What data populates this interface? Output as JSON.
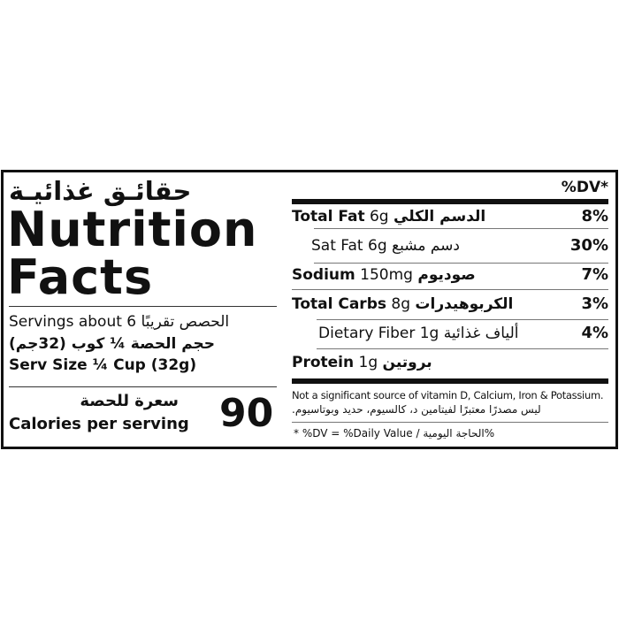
{
  "left": {
    "title_ar": "حقائـق غذائيـة",
    "title_line1": "Nutrition",
    "title_line2": "Facts",
    "servings_en": "Servings about 6",
    "servings_ar": "الحصص تقريبًا",
    "serv_size_ar": "حجم الحصة ¼ كوب (32جم)",
    "serv_size_en": "Serv Size ¼ Cup (32g)",
    "calories_ar": "سعرة للحصة",
    "calories_en": "Calories per serving",
    "calories_value": "90"
  },
  "right": {
    "dv_header": "%DV*",
    "rows": [
      {
        "name_en": "Total Fat",
        "amount": "6g",
        "name_ar": "الدسم الكلي",
        "dv": "8%",
        "bold": true,
        "indent": false
      },
      {
        "name_en": "Sat Fat",
        "amount": "6g",
        "name_ar": "دسم مشبع",
        "dv": "30%",
        "bold": false,
        "indent": true
      },
      {
        "name_en": "Sodium",
        "amount": "150mg",
        "name_ar": "صوديوم",
        "dv": "7%",
        "bold": true,
        "indent": false
      },
      {
        "name_en": "Total Carbs",
        "amount": "8g",
        "name_ar": "الكربوهيدرات",
        "dv": "3%",
        "bold": true,
        "indent": false
      },
      {
        "name_en": "Dietary Fiber",
        "amount": "1g",
        "name_ar": "ألياف غذائية",
        "dv": "4%",
        "bold": false,
        "indent": true
      },
      {
        "name_en": "Protein",
        "amount": "1g",
        "name_ar": "بروتين",
        "dv": "",
        "bold": true,
        "indent": false
      }
    ],
    "note_en": "Not a significant source of vitamin D, Calcium, Iron & Potassium.",
    "note_ar": "ليس مصدرًا معتبرًا لفيتامين د، كالسيوم، حديد وبوتاسيوم.",
    "footnote": "* %DV = %Daily Value / الحاجة اليومية%"
  }
}
